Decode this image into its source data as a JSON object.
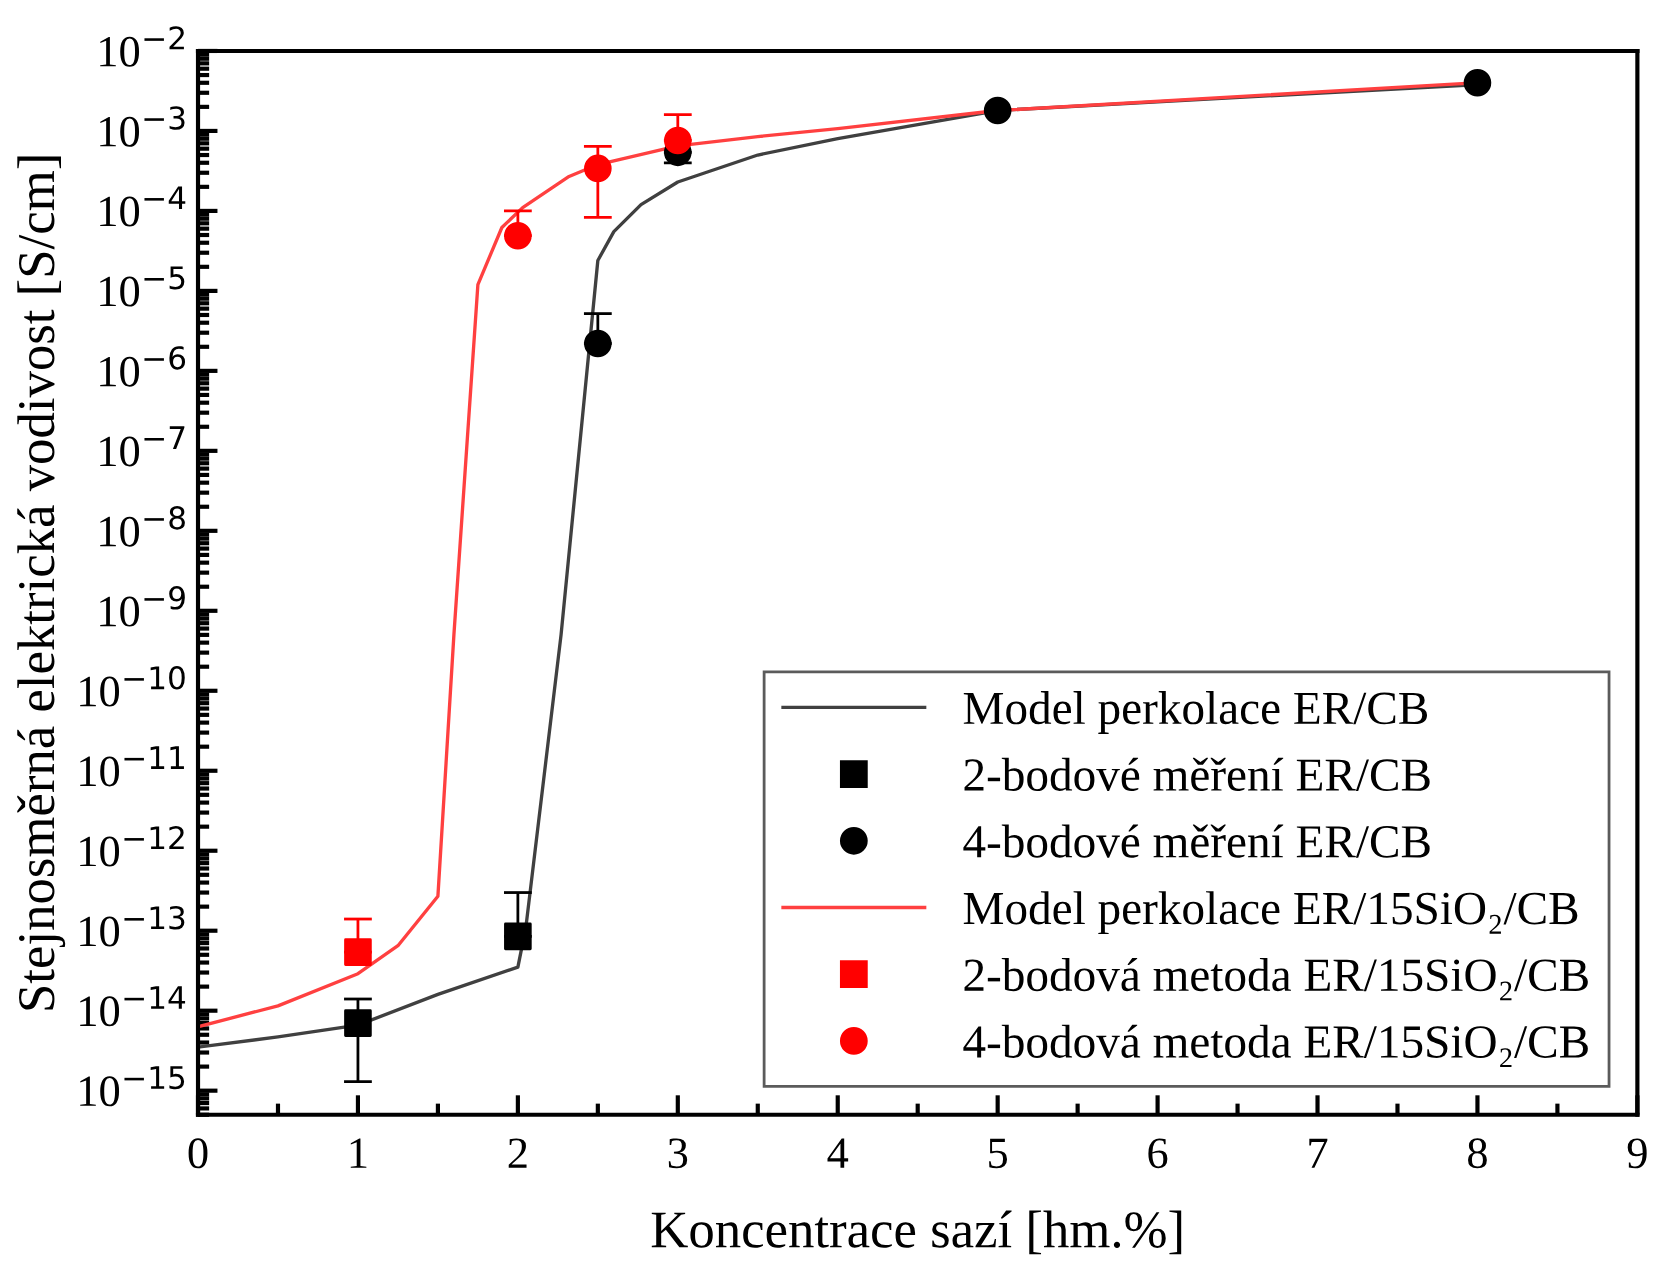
{
  "chart_data": {
    "type": "line",
    "xlabel": "Koncentrace sazí [hm.%]",
    "ylabel": "Stejnosměrná elektrická vodivost [S/cm]",
    "log": "y",
    "xlim": [
      0,
      9
    ],
    "xticks": [
      0,
      1,
      2,
      3,
      4,
      5,
      6,
      7,
      8,
      9
    ],
    "ylim": [
      5e-16,
      0.01
    ],
    "yticks": [
      {
        "value": 1e-15,
        "label": "10$^{−15}$"
      },
      {
        "value": 1e-14,
        "label": "10$^{−14}$"
      },
      {
        "value": 1e-13,
        "label": "10$^{−13}$"
      },
      {
        "value": 1e-12,
        "label": "10$^{−12}$"
      },
      {
        "value": 1e-11,
        "label": "10$^{−11}$"
      },
      {
        "value": 1e-10,
        "label": "10$^{−10}$"
      },
      {
        "value": 1e-09,
        "label": "10$^{−9}$"
      },
      {
        "value": 1e-08,
        "label": "10$^{−8}$"
      },
      {
        "value": 1e-07,
        "label": "10$^{−7}$"
      },
      {
        "value": 1e-06,
        "label": "10$^{−6}$"
      },
      {
        "value": 1e-05,
        "label": "10$^{−5}$"
      },
      {
        "value": 0.0001,
        "label": "10$^{−4}$"
      },
      {
        "value": 0.001,
        "label": "10$^{−3}$"
      },
      {
        "value": 0.01,
        "label": "10$^{−2}$"
      }
    ],
    "grid": false,
    "legend": "bottom right",
    "series": [
      {
        "name": "Model perkolace ER/CB",
        "color": "#404040",
        "marker": "none",
        "x": [
          0,
          0.5,
          1,
          1.5,
          2,
          2.05,
          2.27,
          2.5,
          2.6,
          2.77,
          3,
          3.5,
          4,
          5,
          8
        ],
        "values": [
          3.5e-15,
          4.7e-15,
          6.6e-15,
          1.6e-14,
          3.5e-14,
          1.1e-13,
          5e-10,
          2.4e-05,
          5.5e-05,
          0.00012,
          0.00023,
          0.0005,
          0.0008,
          0.0018,
          0.0038
        ]
      },
      {
        "name": "2-bodové měření ER/CB",
        "type": "scatter",
        "color": "#000000",
        "marker": "square",
        "x": [
          1,
          2
        ],
        "values": [
          7e-15,
          8.5e-14
        ],
        "errors": [
          [
            1.3e-15,
            1.4e-14
          ],
          [
            8.5e-14,
            3e-13
          ]
        ]
      },
      {
        "name": "4-bodové měření ER/CB",
        "type": "scatter",
        "color": "#000000",
        "marker": "circle",
        "x": [
          2.5,
          3,
          5,
          8
        ],
        "values": [
          2.2e-06,
          0.00054,
          0.0018,
          0.004
        ],
        "errors": [
          [
            2.2e-06,
            5.2e-06
          ],
          [
            0.0004,
            0.00054
          ],
          null,
          null
        ]
      },
      {
        "name": "Model perkolace ER/15SiO₂/CB",
        "color": "#ff4040",
        "marker": "none",
        "x": [
          0,
          0.5,
          1,
          1.25,
          1.5,
          1.6,
          1.75,
          1.9,
          2.03,
          2.32,
          2.5,
          3,
          3.5,
          4,
          5,
          8
        ],
        "values": [
          6.3e-15,
          1.15e-14,
          2.9e-14,
          6.5e-14,
          2.7e-13,
          5e-10,
          1.2e-05,
          6.2e-05,
          0.00011,
          0.00027,
          0.00038,
          0.00065,
          0.00085,
          0.00107,
          0.0018,
          0.004
        ]
      },
      {
        "name": "2-bodová metoda ER/15SiO₂/CB",
        "type": "scatter",
        "color": "#ff0000",
        "marker": "square",
        "x": [
          1
        ],
        "values": [
          5.4e-14
        ],
        "errors": [
          [
            5.4e-14,
            1.4e-13
          ]
        ]
      },
      {
        "name": "4-bodová metoda ER/15SiO₂/CB",
        "type": "scatter",
        "color": "#ff0000",
        "marker": "circle",
        "x": [
          2,
          2.5,
          3
        ],
        "values": [
          4.9e-05,
          0.00034,
          0.00076
        ],
        "errors": [
          [
            4.9e-05,
            0.0001
          ],
          [
            8.3e-05,
            0.00064
          ],
          [
            0.00076,
            0.0016
          ]
        ]
      }
    ]
  }
}
